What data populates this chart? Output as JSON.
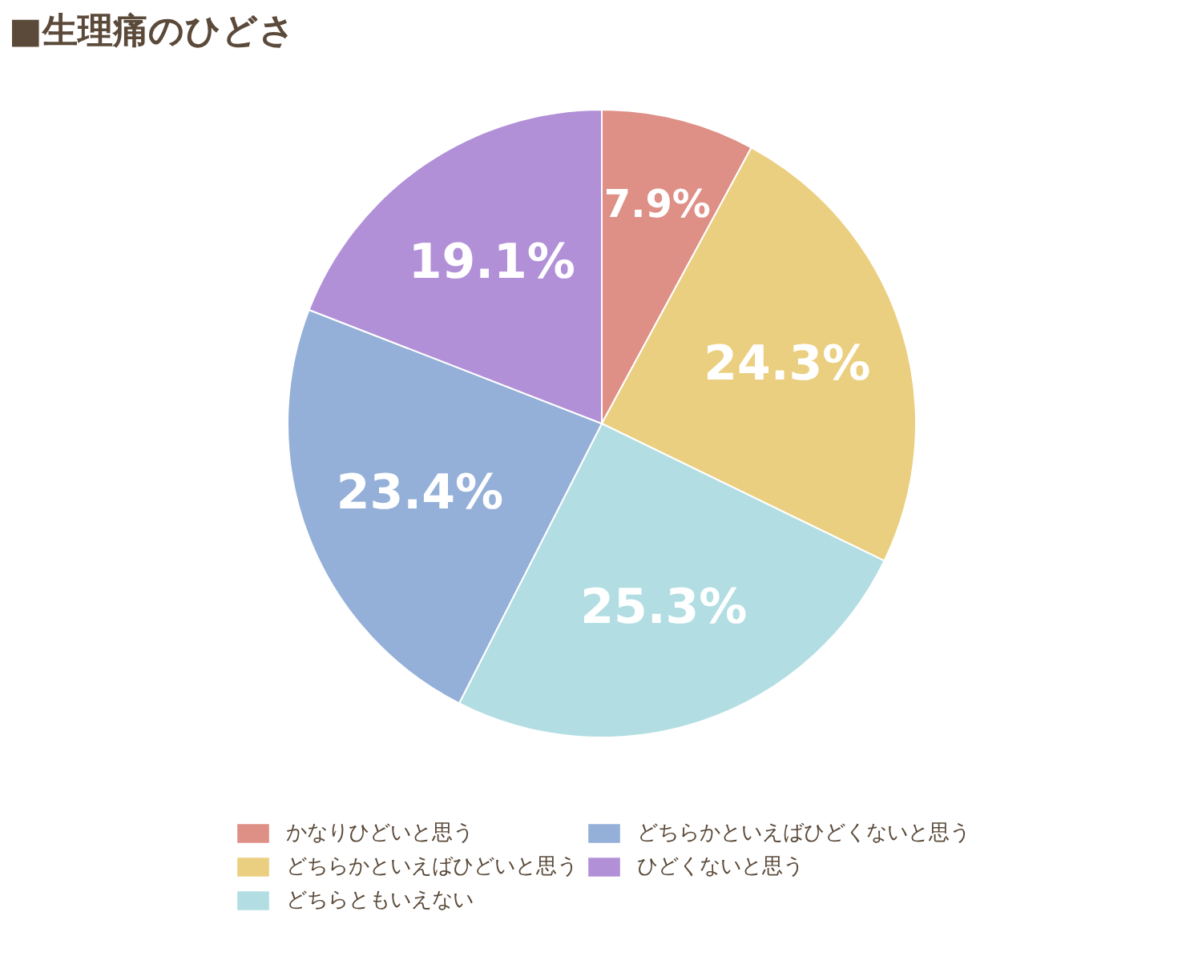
{
  "chart_data": {
    "type": "pie",
    "title": "■生理痛のひどさ",
    "categories": [
      "かなりひどいと思う",
      "どちらかといえばひどいと思う",
      "どちらともいえない",
      "どちらかといえばひどくないと思う",
      "ひどくないと思う"
    ],
    "values": [
      7.9,
      24.3,
      25.3,
      23.4,
      19.1
    ],
    "colors": [
      "#de8f86",
      "#ebcf80",
      "#b2dee3",
      "#94b0d8",
      "#b290d8"
    ],
    "value_labels": [
      "7.9%",
      "24.3%",
      "25.3%",
      "23.4%",
      "19.1%"
    ],
    "legend": "bottom"
  }
}
